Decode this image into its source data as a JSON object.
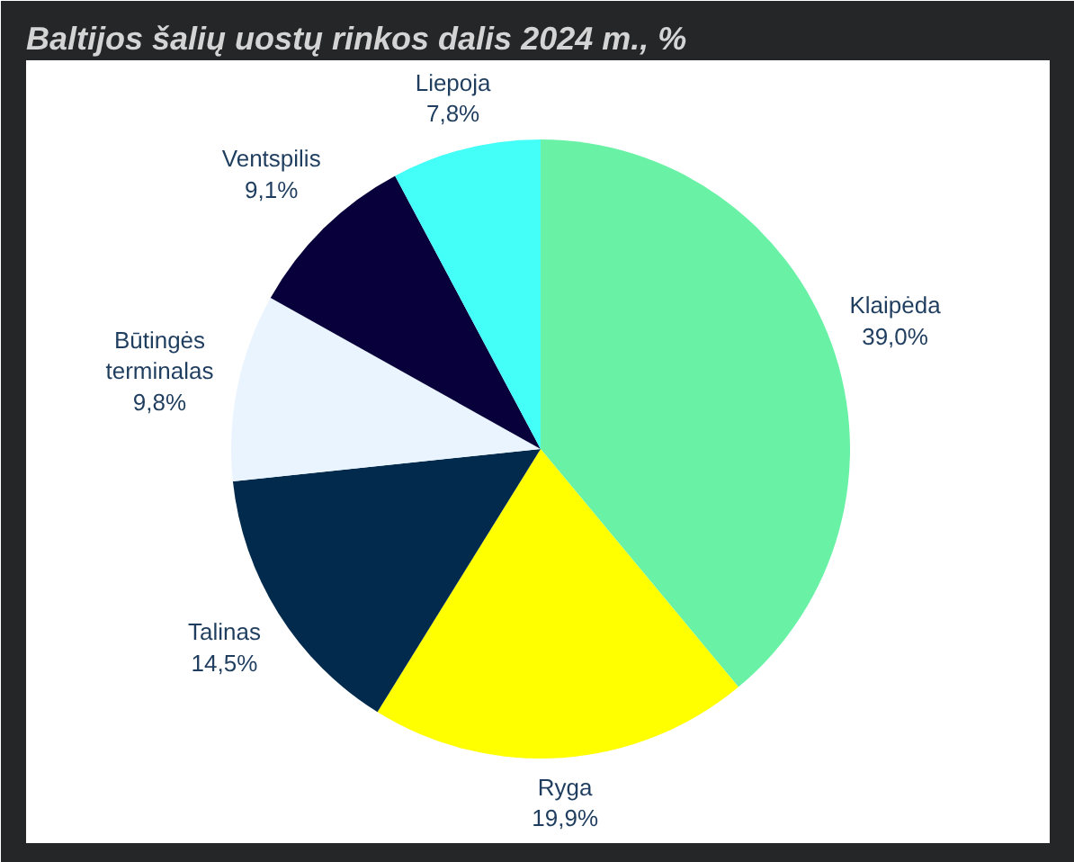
{
  "chart_data": {
    "type": "pie",
    "title": "Baltijos šalių uostų rinkos dalis 2024 m., %",
    "categories": [
      "Klaipėda",
      "Ryga",
      "Talinas",
      "Būtingės terminalas",
      "Ventspilis",
      "Liepoja"
    ],
    "values": [
      39.0,
      19.9,
      14.5,
      9.8,
      9.1,
      7.8
    ],
    "colors": [
      "#69f2a6",
      "#ffff00",
      "#012a4c",
      "#eaf4fe",
      "#07003a",
      "#44fff8"
    ],
    "value_labels": [
      "39,0%",
      "19,9%",
      "14,5%",
      "9,8%",
      "9,1%",
      "7,8%"
    ]
  }
}
